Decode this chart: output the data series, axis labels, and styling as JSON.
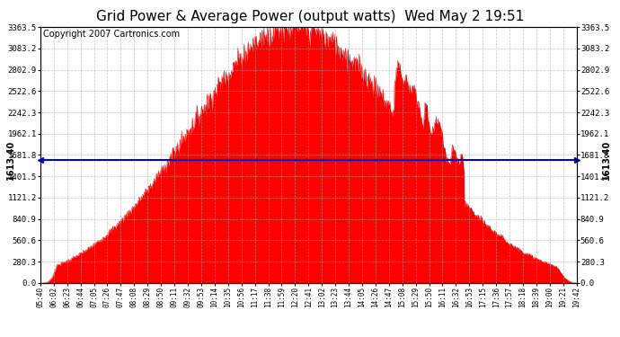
{
  "title": "Grid Power & Average Power (output watts)  Wed May 2 19:51",
  "copyright": "Copyright 2007 Cartronics.com",
  "y_max": 3363.5,
  "y_min": 0.0,
  "avg_line_value": 1613.4,
  "avg_label": "1613.40",
  "fill_color": "#ff0000",
  "avg_line_color": "#0000cc",
  "bg_color": "#ffffff",
  "plot_bg_color": "#ffffff",
  "grid_color": "#aaaaaa",
  "title_fontsize": 11,
  "copyright_fontsize": 7,
  "tick_label_fontsize": 6.5,
  "x_tick_fontsize": 5.5,
  "x_tick_labels": [
    "05:40",
    "06:02",
    "06:23",
    "06:44",
    "07:05",
    "07:26",
    "07:47",
    "08:08",
    "08:29",
    "08:50",
    "09:11",
    "09:32",
    "09:53",
    "10:14",
    "10:35",
    "10:56",
    "11:17",
    "11:38",
    "11:59",
    "12:20",
    "12:41",
    "13:02",
    "13:23",
    "13:44",
    "14:05",
    "14:26",
    "14:47",
    "15:08",
    "15:29",
    "15:50",
    "16:11",
    "16:32",
    "16:53",
    "17:15",
    "17:36",
    "17:57",
    "18:18",
    "18:39",
    "19:00",
    "19:21",
    "19:42"
  ],
  "y_tick_labels": [
    "0.0",
    "280.3",
    "560.6",
    "840.9",
    "1121.2",
    "1401.5",
    "1681.8",
    "1962.1",
    "2242.3",
    "2522.6",
    "2802.9",
    "3083.2",
    "3363.5"
  ],
  "y_tick_values": [
    0.0,
    280.3,
    560.6,
    840.9,
    1121.2,
    1401.5,
    1681.8,
    1962.1,
    2242.3,
    2522.6,
    2802.9,
    3083.2,
    3363.5
  ]
}
